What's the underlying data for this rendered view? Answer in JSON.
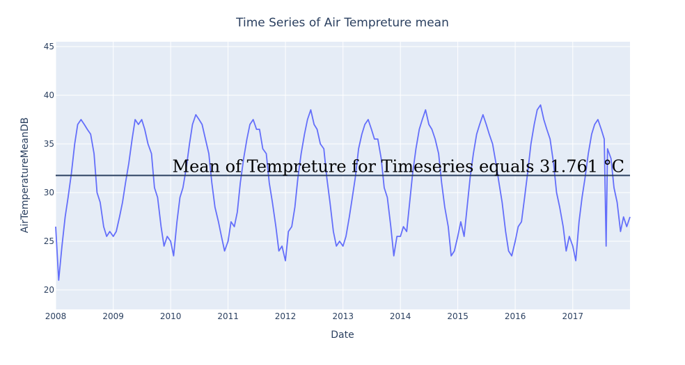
{
  "chart_data": {
    "type": "line",
    "title": "Time Series of Air Tempreture mean",
    "xlabel": "Date",
    "ylabel": "AirTemperatureMeanDB",
    "x_range": [
      "2008-01-01",
      "2017-12-31"
    ],
    "x_ticks": [
      "2008",
      "2009",
      "2010",
      "2011",
      "2012",
      "2013",
      "2014",
      "2015",
      "2016",
      "2017"
    ],
    "ylim": [
      18,
      45.5
    ],
    "y_ticks": [
      20,
      25,
      30,
      35,
      40,
      45
    ],
    "grid": true,
    "series": [
      {
        "color": "#636efa",
        "points": [
          [
            "2008-01-01",
            26.5
          ],
          [
            "2008-01-20",
            21.0
          ],
          [
            "2008-02-10",
            24.5
          ],
          [
            "2008-03-01",
            27.5
          ],
          [
            "2008-03-20",
            29.5
          ],
          [
            "2008-04-10",
            32.0
          ],
          [
            "2008-05-01",
            35.0
          ],
          [
            "2008-05-20",
            37.0
          ],
          [
            "2008-06-10",
            37.5
          ],
          [
            "2008-07-01",
            37.0
          ],
          [
            "2008-07-20",
            36.5
          ],
          [
            "2008-08-10",
            36.0
          ],
          [
            "2008-09-01",
            34.0
          ],
          [
            "2008-09-20",
            30.0
          ],
          [
            "2008-10-10",
            29.0
          ],
          [
            "2008-11-01",
            26.5
          ],
          [
            "2008-11-20",
            25.5
          ],
          [
            "2008-12-10",
            26.0
          ],
          [
            "2009-01-01",
            25.5
          ],
          [
            "2009-01-20",
            26.0
          ],
          [
            "2009-02-10",
            27.5
          ],
          [
            "2009-03-01",
            29.0
          ],
          [
            "2009-03-20",
            31.0
          ],
          [
            "2009-04-10",
            33.0
          ],
          [
            "2009-05-01",
            35.5
          ],
          [
            "2009-05-20",
            37.5
          ],
          [
            "2009-06-10",
            37.0
          ],
          [
            "2009-07-01",
            37.5
          ],
          [
            "2009-07-20",
            36.5
          ],
          [
            "2009-08-10",
            35.0
          ],
          [
            "2009-09-01",
            34.0
          ],
          [
            "2009-09-20",
            30.5
          ],
          [
            "2009-10-10",
            29.5
          ],
          [
            "2009-11-01",
            26.5
          ],
          [
            "2009-11-20",
            24.5
          ],
          [
            "2009-12-10",
            25.5
          ],
          [
            "2010-01-01",
            25.0
          ],
          [
            "2010-01-20",
            23.5
          ],
          [
            "2010-02-10",
            27.0
          ],
          [
            "2010-03-01",
            29.5
          ],
          [
            "2010-03-20",
            30.5
          ],
          [
            "2010-04-10",
            32.5
          ],
          [
            "2010-05-01",
            35.0
          ],
          [
            "2010-05-20",
            37.0
          ],
          [
            "2010-06-10",
            38.0
          ],
          [
            "2010-07-01",
            37.5
          ],
          [
            "2010-07-20",
            37.0
          ],
          [
            "2010-08-10",
            35.5
          ],
          [
            "2010-09-01",
            34.0
          ],
          [
            "2010-09-20",
            31.0
          ],
          [
            "2010-10-10",
            28.5
          ],
          [
            "2010-11-01",
            27.0
          ],
          [
            "2010-11-20",
            25.5
          ],
          [
            "2010-12-10",
            24.0
          ],
          [
            "2011-01-01",
            25.0
          ],
          [
            "2011-01-20",
            27.0
          ],
          [
            "2011-02-10",
            26.5
          ],
          [
            "2011-03-01",
            28.0
          ],
          [
            "2011-03-20",
            31.0
          ],
          [
            "2011-04-10",
            33.5
          ],
          [
            "2011-05-01",
            35.5
          ],
          [
            "2011-05-20",
            37.0
          ],
          [
            "2011-06-10",
            37.5
          ],
          [
            "2011-07-01",
            36.5
          ],
          [
            "2011-07-20",
            36.5
          ],
          [
            "2011-08-10",
            34.5
          ],
          [
            "2011-09-01",
            34.0
          ],
          [
            "2011-09-20",
            31.0
          ],
          [
            "2011-10-10",
            29.0
          ],
          [
            "2011-11-01",
            26.5
          ],
          [
            "2011-11-20",
            24.0
          ],
          [
            "2011-12-10",
            24.5
          ],
          [
            "2012-01-01",
            23.0
          ],
          [
            "2012-01-20",
            26.0
          ],
          [
            "2012-02-10",
            26.5
          ],
          [
            "2012-03-01",
            28.5
          ],
          [
            "2012-03-20",
            31.5
          ],
          [
            "2012-04-10",
            34.0
          ],
          [
            "2012-05-01",
            36.0
          ],
          [
            "2012-05-20",
            37.5
          ],
          [
            "2012-06-10",
            38.5
          ],
          [
            "2012-07-01",
            37.0
          ],
          [
            "2012-07-20",
            36.5
          ],
          [
            "2012-08-10",
            35.0
          ],
          [
            "2012-09-01",
            34.5
          ],
          [
            "2012-09-20",
            31.5
          ],
          [
            "2012-10-10",
            29.0
          ],
          [
            "2012-11-01",
            26.0
          ],
          [
            "2012-11-20",
            24.5
          ],
          [
            "2012-12-10",
            25.0
          ],
          [
            "2013-01-01",
            24.5
          ],
          [
            "2013-01-20",
            25.5
          ],
          [
            "2013-02-10",
            27.5
          ],
          [
            "2013-03-01",
            29.5
          ],
          [
            "2013-03-20",
            31.5
          ],
          [
            "2013-04-10",
            34.5
          ],
          [
            "2013-05-01",
            36.0
          ],
          [
            "2013-05-20",
            37.0
          ],
          [
            "2013-06-10",
            37.5
          ],
          [
            "2013-07-01",
            36.5
          ],
          [
            "2013-07-20",
            35.5
          ],
          [
            "2013-08-10",
            35.5
          ],
          [
            "2013-09-01",
            33.5
          ],
          [
            "2013-09-20",
            30.5
          ],
          [
            "2013-10-10",
            29.5
          ],
          [
            "2013-11-01",
            26.5
          ],
          [
            "2013-11-20",
            23.5
          ],
          [
            "2013-12-10",
            25.5
          ],
          [
            "2014-01-01",
            25.5
          ],
          [
            "2014-01-20",
            26.5
          ],
          [
            "2014-02-10",
            26.0
          ],
          [
            "2014-03-01",
            29.0
          ],
          [
            "2014-03-20",
            32.0
          ],
          [
            "2014-04-10",
            34.5
          ],
          [
            "2014-05-01",
            36.5
          ],
          [
            "2014-05-20",
            37.5
          ],
          [
            "2014-06-10",
            38.5
          ],
          [
            "2014-07-01",
            37.0
          ],
          [
            "2014-07-20",
            36.5
          ],
          [
            "2014-08-10",
            35.5
          ],
          [
            "2014-09-01",
            34.0
          ],
          [
            "2014-09-20",
            31.0
          ],
          [
            "2014-10-10",
            28.5
          ],
          [
            "2014-11-01",
            26.5
          ],
          [
            "2014-11-20",
            23.5
          ],
          [
            "2014-12-10",
            24.0
          ],
          [
            "2015-01-01",
            25.5
          ],
          [
            "2015-01-20",
            27.0
          ],
          [
            "2015-02-10",
            25.5
          ],
          [
            "2015-03-01",
            28.5
          ],
          [
            "2015-03-20",
            31.5
          ],
          [
            "2015-04-10",
            34.0
          ],
          [
            "2015-05-01",
            36.0
          ],
          [
            "2015-05-20",
            37.0
          ],
          [
            "2015-06-10",
            38.0
          ],
          [
            "2015-07-01",
            37.0
          ],
          [
            "2015-07-20",
            36.0
          ],
          [
            "2015-08-10",
            35.0
          ],
          [
            "2015-09-01",
            33.0
          ],
          [
            "2015-09-20",
            31.0
          ],
          [
            "2015-10-10",
            29.0
          ],
          [
            "2015-11-01",
            26.0
          ],
          [
            "2015-11-20",
            24.0
          ],
          [
            "2015-12-10",
            23.5
          ],
          [
            "2016-01-01",
            25.0
          ],
          [
            "2016-01-20",
            26.5
          ],
          [
            "2016-02-10",
            27.0
          ],
          [
            "2016-03-01",
            29.5
          ],
          [
            "2016-03-20",
            32.0
          ],
          [
            "2016-04-10",
            35.0
          ],
          [
            "2016-05-01",
            37.0
          ],
          [
            "2016-05-20",
            38.5
          ],
          [
            "2016-06-10",
            39.0
          ],
          [
            "2016-07-01",
            37.5
          ],
          [
            "2016-07-20",
            36.5
          ],
          [
            "2016-08-10",
            35.5
          ],
          [
            "2016-09-01",
            33.0
          ],
          [
            "2016-09-20",
            30.0
          ],
          [
            "2016-10-10",
            28.5
          ],
          [
            "2016-11-01",
            26.5
          ],
          [
            "2016-11-20",
            24.0
          ],
          [
            "2016-12-10",
            25.5
          ],
          [
            "2017-01-01",
            24.5
          ],
          [
            "2017-01-20",
            23.0
          ],
          [
            "2017-02-10",
            27.0
          ],
          [
            "2017-03-01",
            29.5
          ],
          [
            "2017-03-20",
            31.5
          ],
          [
            "2017-04-10",
            34.0
          ],
          [
            "2017-05-01",
            36.0
          ],
          [
            "2017-05-20",
            37.0
          ],
          [
            "2017-06-10",
            37.5
          ],
          [
            "2017-07-01",
            36.5
          ],
          [
            "2017-07-20",
            35.5
          ],
          [
            "2017-08-01",
            24.5
          ],
          [
            "2017-08-10",
            34.5
          ],
          [
            "2017-09-01",
            33.5
          ],
          [
            "2017-09-20",
            30.5
          ],
          [
            "2017-10-10",
            29.0
          ],
          [
            "2017-11-01",
            26.0
          ],
          [
            "2017-11-20",
            27.5
          ],
          [
            "2017-12-10",
            26.5
          ],
          [
            "2017-12-31",
            27.5
          ]
        ]
      }
    ],
    "mean_line": {
      "value": 31.761,
      "color": "#2a3f5f",
      "annotation": "Mean of Tempreture for Timeseries equals 31.761 °C"
    }
  }
}
